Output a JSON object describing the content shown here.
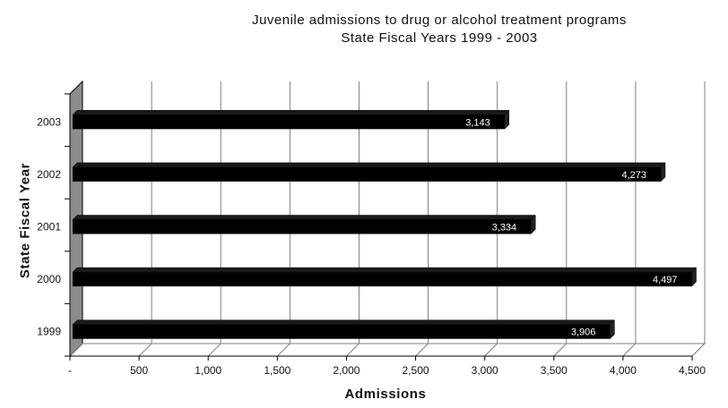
{
  "chart_data": {
    "type": "bar",
    "orientation": "horizontal",
    "title_line1": "Juvenile admissions to drug or alcohol treatment programs",
    "title_line2": "State Fiscal Years 1999 - 2003",
    "xlabel": "Admissions",
    "ylabel": "State Fiscal Year",
    "categories": [
      "1999",
      "2000",
      "2001",
      "2002",
      "2003"
    ],
    "values": [
      3906,
      4497,
      3334,
      4273,
      3143
    ],
    "value_labels": [
      "3,906",
      "4,497",
      "3,334",
      "4,273",
      "3,143"
    ],
    "x_ticks": [
      0,
      500,
      1000,
      1500,
      2000,
      2500,
      3000,
      3500,
      4000,
      4500
    ],
    "x_tick_labels": [
      "-",
      "500",
      "1,000",
      "1,500",
      "2,000",
      "2,500",
      "3,000",
      "3,500",
      "4,000",
      "4,500"
    ],
    "xlim": [
      0,
      4500
    ],
    "grid": true,
    "colors": {
      "bar": "#000000",
      "bar_label": "#ffffff",
      "wall": "#8c8c8c",
      "grid": "#7f7f7f"
    }
  }
}
